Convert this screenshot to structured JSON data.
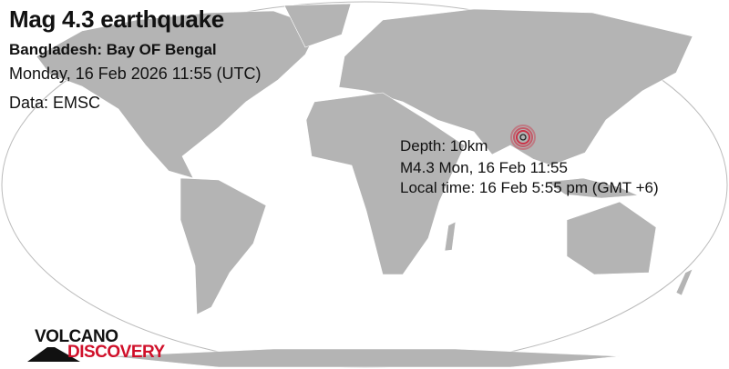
{
  "title": "Mag 4.3 earthquake",
  "region": "Bangladesh: Bay OF Bengal",
  "datetime": "Monday, 16 Feb 2026 11:55 (UTC)",
  "source": "Data: EMSC",
  "info": {
    "depth": "Depth: 10km",
    "magnitude_time": "M4.3 Mon, 16 Feb 11:55",
    "local_time": "Local time: 16 Feb 5:55 pm (GMT +6)"
  },
  "logo": {
    "line1": "VOLCANO",
    "line2": "DISCOVERY"
  },
  "colors": {
    "land": "#b4b4b4",
    "ocean": "#ffffff",
    "epicenter": "#d0102a",
    "logo_red": "#d0102a"
  },
  "epicenter_icon": "concentric-circles-marker"
}
